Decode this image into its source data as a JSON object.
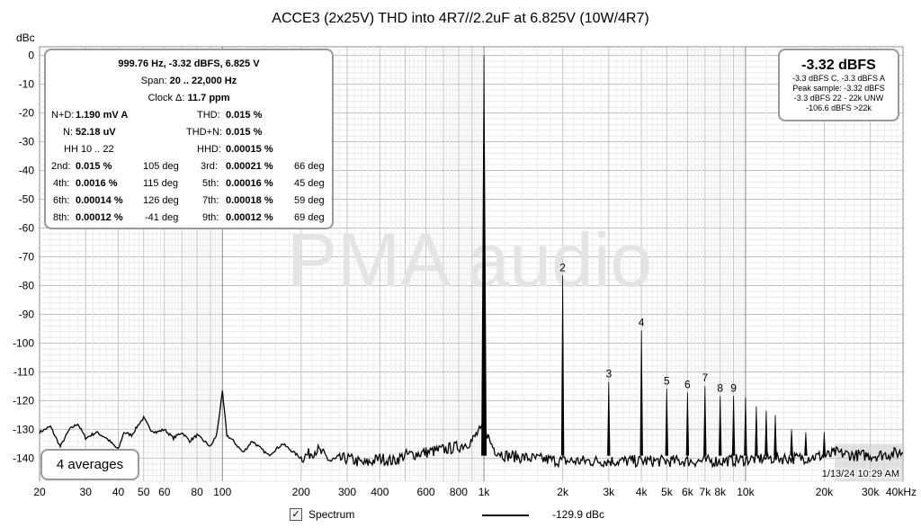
{
  "chart_data": {
    "type": "line",
    "title": "ACCE3 (2x25V) THD into 4R7//2.2uF at 6.825V (10W/4R7)",
    "ylabel": "dBc",
    "xlabel": "",
    "x_scale": "log",
    "xlim": [
      20,
      40000
    ],
    "ylim": [
      -148,
      3
    ],
    "x_tick_labels": [
      {
        "value": 20,
        "label": "20"
      },
      {
        "value": 30,
        "label": "30"
      },
      {
        "value": 40,
        "label": "40"
      },
      {
        "value": 50,
        "label": "50"
      },
      {
        "value": 60,
        "label": "60"
      },
      {
        "value": 80,
        "label": "80"
      },
      {
        "value": 100,
        "label": "100"
      },
      {
        "value": 200,
        "label": "200"
      },
      {
        "value": 300,
        "label": "300"
      },
      {
        "value": 400,
        "label": "400"
      },
      {
        "value": 600,
        "label": "600"
      },
      {
        "value": 800,
        "label": "800"
      },
      {
        "value": 1000,
        "label": "1k"
      },
      {
        "value": 2000,
        "label": "2k"
      },
      {
        "value": 3000,
        "label": "3k"
      },
      {
        "value": 4000,
        "label": "4k"
      },
      {
        "value": 5000,
        "label": "5k"
      },
      {
        "value": 6000,
        "label": "6k"
      },
      {
        "value": 7000,
        "label": "7k"
      },
      {
        "value": 8000,
        "label": "8k"
      },
      {
        "value": 10000,
        "label": "10k"
      },
      {
        "value": 20000,
        "label": "20k"
      },
      {
        "value": 30000,
        "label": "30k"
      },
      {
        "value": 40000,
        "label": "40kHz"
      }
    ],
    "y_ticks": [
      0,
      -10,
      -20,
      -30,
      -40,
      -50,
      -60,
      -70,
      -80,
      -90,
      -100,
      -110,
      -120,
      -130,
      -140
    ],
    "grid": true,
    "watermark": "PMA audio",
    "timestamp": "1/13/24 10:29 AM",
    "series": [
      {
        "name": "Spectrum",
        "color": "#000000",
        "noise_floor": [
          [
            20,
            -131
          ],
          [
            22,
            -129
          ],
          [
            24,
            -136
          ],
          [
            26,
            -130
          ],
          [
            28,
            -128
          ],
          [
            30,
            -133
          ],
          [
            33,
            -131
          ],
          [
            36,
            -133
          ],
          [
            40,
            -137
          ],
          [
            42,
            -131
          ],
          [
            45,
            -132
          ],
          [
            48,
            -128
          ],
          [
            50,
            -126
          ],
          [
            53,
            -130
          ],
          [
            56,
            -131
          ],
          [
            60,
            -130
          ],
          [
            65,
            -133
          ],
          [
            70,
            -131
          ],
          [
            75,
            -134
          ],
          [
            80,
            -132
          ],
          [
            85,
            -134
          ],
          [
            90,
            -136
          ],
          [
            95,
            -132
          ],
          [
            100,
            -117
          ],
          [
            104,
            -132
          ],
          [
            110,
            -134
          ],
          [
            120,
            -138
          ],
          [
            130,
            -134
          ],
          [
            150,
            -139
          ],
          [
            170,
            -135
          ],
          [
            200,
            -140
          ],
          [
            230,
            -137
          ],
          [
            260,
            -141
          ],
          [
            300,
            -140
          ],
          [
            350,
            -142
          ],
          [
            400,
            -140
          ],
          [
            450,
            -141
          ],
          [
            500,
            -139
          ],
          [
            600,
            -138
          ],
          [
            700,
            -137
          ],
          [
            800,
            -136
          ],
          [
            900,
            -134
          ],
          [
            950,
            -131
          ],
          [
            1020,
            -130
          ],
          [
            1050,
            -134
          ],
          [
            1100,
            -137
          ],
          [
            1200,
            -139
          ],
          [
            1500,
            -140
          ],
          [
            2000,
            -141
          ],
          [
            3000,
            -141
          ],
          [
            5000,
            -141
          ],
          [
            8000,
            -141
          ],
          [
            12000,
            -140
          ],
          [
            16000,
            -140
          ],
          [
            21000,
            -139
          ],
          [
            22000,
            -138
          ],
          [
            26000,
            -139
          ],
          [
            32000,
            -139
          ],
          [
            40000,
            -138
          ]
        ],
        "harmonics": [
          {
            "label": "",
            "f": 999.76,
            "db": 0
          },
          {
            "label": "2",
            "f": 1999.5,
            "db": -76.5
          },
          {
            "label": "3",
            "f": 2999.3,
            "db": -113.5
          },
          {
            "label": "4",
            "f": 3999,
            "db": -95.6
          },
          {
            "label": "5",
            "f": 4998.8,
            "db": -115.9
          },
          {
            "label": "6",
            "f": 5998.6,
            "db": -117.2
          },
          {
            "label": "7",
            "f": 6998.3,
            "db": -114.9
          },
          {
            "label": "8",
            "f": 7998.1,
            "db": -118.4
          },
          {
            "label": "9",
            "f": 8997.8,
            "db": -118.4
          },
          {
            "label": "",
            "f": 9997.6,
            "db": -118.8
          },
          {
            "label": "",
            "f": 10997,
            "db": -122
          },
          {
            "label": "",
            "f": 11997,
            "db": -123.5
          },
          {
            "label": "",
            "f": 12997,
            "db": -125
          },
          {
            "label": "",
            "f": 14997,
            "db": -130
          },
          {
            "label": "",
            "f": 16996,
            "db": -131
          },
          {
            "label": "",
            "f": 19995,
            "db": -131
          }
        ]
      }
    ]
  },
  "info_panel": {
    "header": "999.76 Hz, -3.32 dBFS, 6.825 V",
    "span_label": "Span:",
    "span_value": "20 .. 22,000 Hz",
    "clock_label": "Clock Δ:",
    "clock_value": "11.7 ppm",
    "nd_label": "N+D:",
    "nd_value": "1.190 mV A",
    "thd_label": "THD:",
    "thd_value": "0.015 %",
    "n_label": "N:",
    "n_value": "52.18 uV",
    "thdn_label": "THD+N:",
    "thdn_value": "0.015 %",
    "hh_label": "HH 10 .. 22",
    "hhd_label": "HHD:",
    "hhd_value": "0.00015 %",
    "harmonics": [
      {
        "l1": "2nd:",
        "v1": "0.015 %",
        "d1": "105 deg",
        "l2": "3rd:",
        "v2": "0.00021 %",
        "d2": "66 deg"
      },
      {
        "l1": "4th:",
        "v1": "0.0016 %",
        "d1": "115 deg",
        "l2": "5th:",
        "v2": "0.00016 %",
        "d2": "45 deg"
      },
      {
        "l1": "6th:",
        "v1": "0.00014 %",
        "d1": "126 deg",
        "l2": "7th:",
        "v2": "0.00018 %",
        "d2": "59 deg"
      },
      {
        "l1": "8th:",
        "v1": "0.00012 %",
        "d1": "-41 deg",
        "l2": "9th:",
        "v2": "0.00012 %",
        "d2": "69 deg"
      }
    ]
  },
  "level_panel": {
    "main": "-3.32 dBFS",
    "line1": "-3.3 dBFS C, -3.3 dBFS A",
    "line2": "Peak sample: -3.32 dBFS",
    "line3": "-3.3 dBFS 22 - 22k UNW",
    "line4": "-106.6 dBFS >22k"
  },
  "averages_label": "4 averages",
  "legend": {
    "checkbox_checked": true,
    "checkbox_glyph": "✓",
    "label": "Spectrum",
    "value": "-129.9 dBc"
  }
}
